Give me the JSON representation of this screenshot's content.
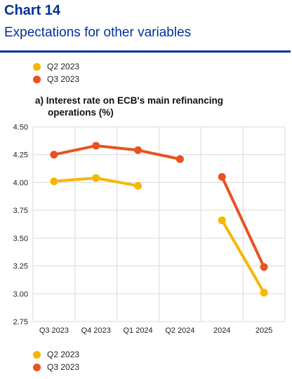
{
  "header": {
    "chart_number": "Chart 14",
    "title": "Expectations for other variables"
  },
  "legend": [
    {
      "label": "Q2 2023",
      "color": "#F5B800"
    },
    {
      "label": "Q3 2023",
      "color": "#E8531F"
    }
  ],
  "chart_data": {
    "type": "line",
    "title": "a) Interest rate on ECB's main refinancing operations (%)",
    "title_lines": [
      "a) Interest rate on ECB's main refinancing",
      "operations (%)"
    ],
    "categories": [
      "Q3 2023",
      "Q4 2023",
      "Q1 2024",
      "Q2 2024",
      "2024",
      "2025"
    ],
    "ylim": [
      2.75,
      4.5
    ],
    "yticks": [
      "2.75",
      "3.00",
      "3.25",
      "3.50",
      "3.75",
      "4.00",
      "4.25",
      "4.50"
    ],
    "grid": true,
    "segments": [
      [
        "Q3 2023",
        "Q4 2023",
        "Q1 2024",
        "Q2 2024"
      ],
      [
        "2024",
        "2025"
      ]
    ],
    "series": [
      {
        "name": "Q2 2023",
        "color": "#F5B800",
        "values": [
          4.01,
          4.04,
          3.97,
          null,
          3.66,
          3.01
        ]
      },
      {
        "name": "Q3 2023",
        "color": "#E8531F",
        "values": [
          4.25,
          4.33,
          4.29,
          4.21,
          4.05,
          3.24
        ]
      }
    ]
  }
}
